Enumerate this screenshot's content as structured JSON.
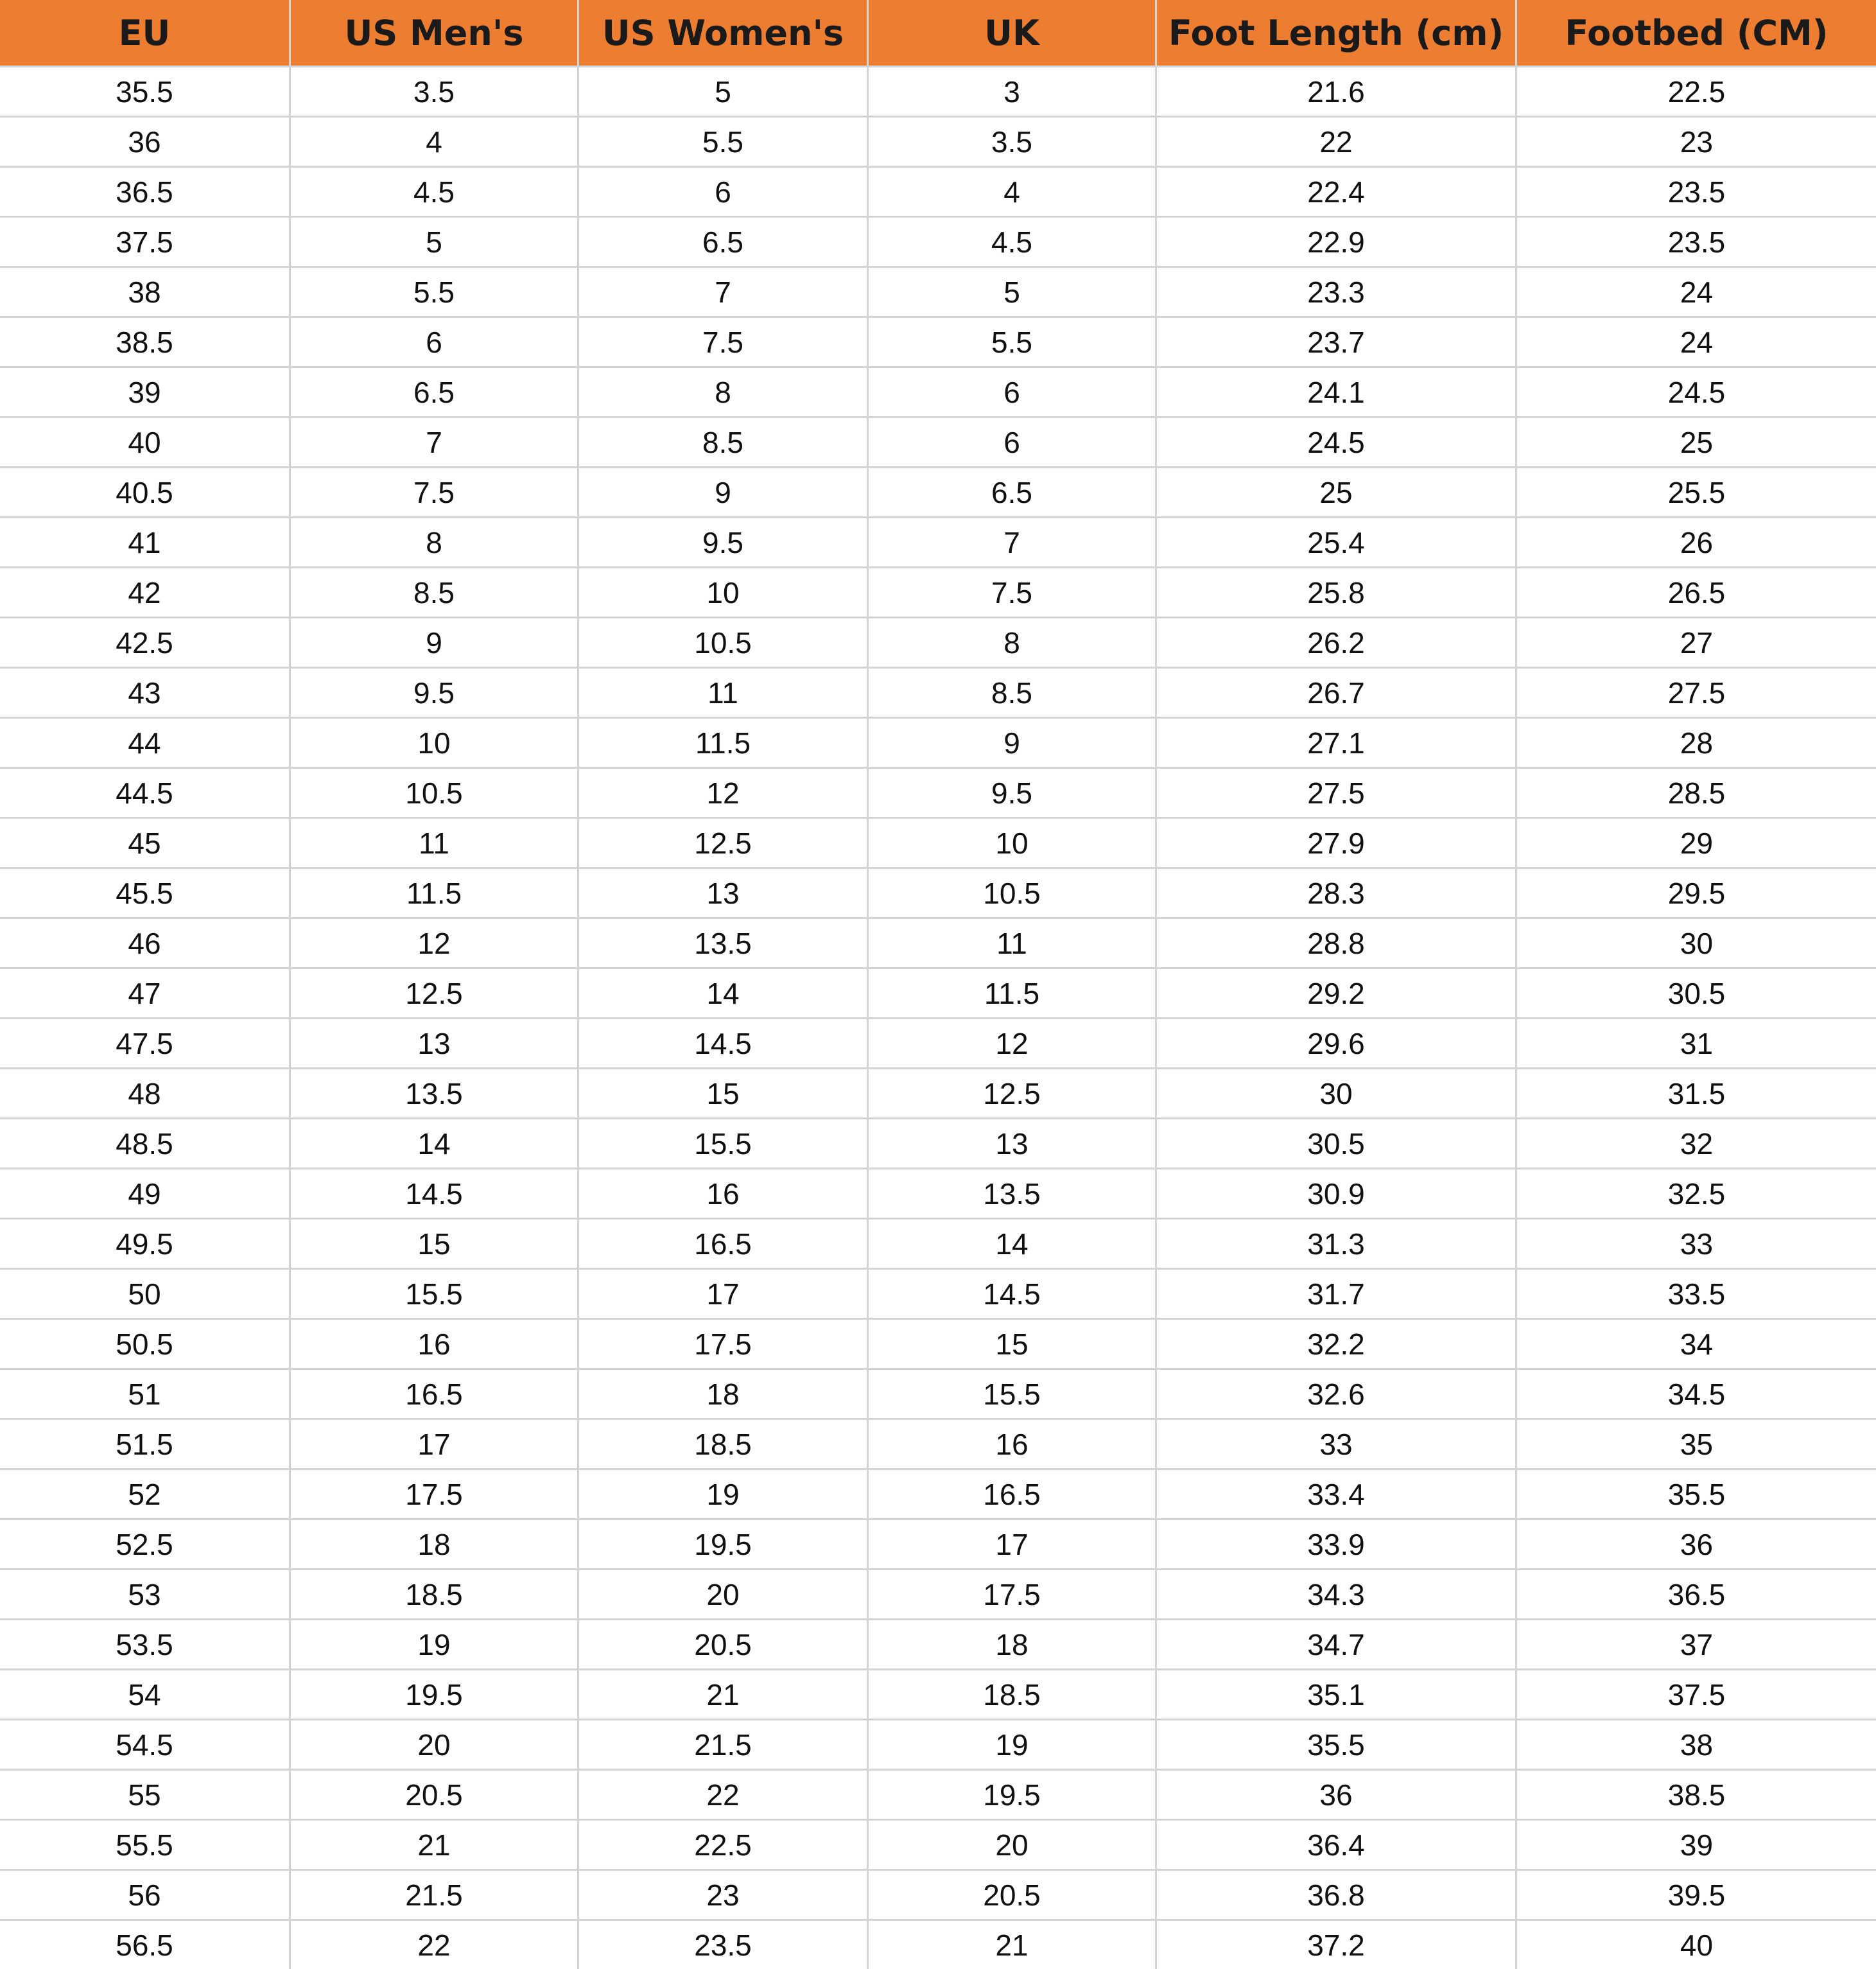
{
  "table": {
    "header": [
      "EU",
      "US Men's",
      "US Women's",
      "UK",
      "Foot Length (cm)",
      "Footbed (CM)"
    ],
    "rows": [
      [
        "35.5",
        "3.5",
        "5",
        "3",
        "21.6",
        "22.5"
      ],
      [
        "36",
        "4",
        "5.5",
        "3.5",
        "22",
        "23"
      ],
      [
        "36.5",
        "4.5",
        "6",
        "4",
        "22.4",
        "23.5"
      ],
      [
        "37.5",
        "5",
        "6.5",
        "4.5",
        "22.9",
        "23.5"
      ],
      [
        "38",
        "5.5",
        "7",
        "5",
        "23.3",
        "24"
      ],
      [
        "38.5",
        "6",
        "7.5",
        "5.5",
        "23.7",
        "24"
      ],
      [
        "39",
        "6.5",
        "8",
        "6",
        "24.1",
        "24.5"
      ],
      [
        "40",
        "7",
        "8.5",
        "6",
        "24.5",
        "25"
      ],
      [
        "40.5",
        "7.5",
        "9",
        "6.5",
        "25",
        "25.5"
      ],
      [
        "41",
        "8",
        "9.5",
        "7",
        "25.4",
        "26"
      ],
      [
        "42",
        "8.5",
        "10",
        "7.5",
        "25.8",
        "26.5"
      ],
      [
        "42.5",
        "9",
        "10.5",
        "8",
        "26.2",
        "27"
      ],
      [
        "43",
        "9.5",
        "11",
        "8.5",
        "26.7",
        "27.5"
      ],
      [
        "44",
        "10",
        "11.5",
        "9",
        "27.1",
        "28"
      ],
      [
        "44.5",
        "10.5",
        "12",
        "9.5",
        "27.5",
        "28.5"
      ],
      [
        "45",
        "11",
        "12.5",
        "10",
        "27.9",
        "29"
      ],
      [
        "45.5",
        "11.5",
        "13",
        "10.5",
        "28.3",
        "29.5"
      ],
      [
        "46",
        "12",
        "13.5",
        "11",
        "28.8",
        "30"
      ],
      [
        "47",
        "12.5",
        "14",
        "11.5",
        "29.2",
        "30.5"
      ],
      [
        "47.5",
        "13",
        "14.5",
        "12",
        "29.6",
        "31"
      ],
      [
        "48",
        "13.5",
        "15",
        "12.5",
        "30",
        "31.5"
      ],
      [
        "48.5",
        "14",
        "15.5",
        "13",
        "30.5",
        "32"
      ],
      [
        "49",
        "14.5",
        "16",
        "13.5",
        "30.9",
        "32.5"
      ],
      [
        "49.5",
        "15",
        "16.5",
        "14",
        "31.3",
        "33"
      ],
      [
        "50",
        "15.5",
        "17",
        "14.5",
        "31.7",
        "33.5"
      ],
      [
        "50.5",
        "16",
        "17.5",
        "15",
        "32.2",
        "34"
      ],
      [
        "51",
        "16.5",
        "18",
        "15.5",
        "32.6",
        "34.5"
      ],
      [
        "51.5",
        "17",
        "18.5",
        "16",
        "33",
        "35"
      ],
      [
        "52",
        "17.5",
        "19",
        "16.5",
        "33.4",
        "35.5"
      ],
      [
        "52.5",
        "18",
        "19.5",
        "17",
        "33.9",
        "36"
      ],
      [
        "53",
        "18.5",
        "20",
        "17.5",
        "34.3",
        "36.5"
      ],
      [
        "53.5",
        "19",
        "20.5",
        "18",
        "34.7",
        "37"
      ],
      [
        "54",
        "19.5",
        "21",
        "18.5",
        "35.1",
        "37.5"
      ],
      [
        "54.5",
        "20",
        "21.5",
        "19",
        "35.5",
        "38"
      ],
      [
        "55",
        "20.5",
        "22",
        "19.5",
        "36",
        "38.5"
      ],
      [
        "55.5",
        "21",
        "22.5",
        "20",
        "36.4",
        "39"
      ],
      [
        "56",
        "21.5",
        "23",
        "20.5",
        "36.8",
        "39.5"
      ],
      [
        "56.5",
        "22",
        "23.5",
        "21",
        "37.2",
        "40"
      ]
    ]
  }
}
